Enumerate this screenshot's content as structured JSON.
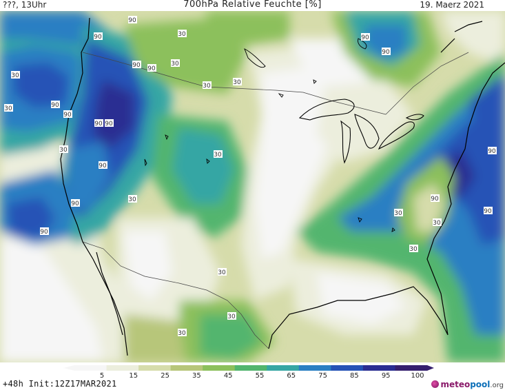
{
  "header": {
    "left": "???, 13Uhr",
    "title": "700hPa Relative Feuchte [%]",
    "date": "19. Maerz 2021"
  },
  "footer": {
    "run": "+48h  Init:12Z17MAR2021"
  },
  "brand": {
    "part1": "meteo",
    "part2": "pool",
    "part3": ".org"
  },
  "legend": {
    "ticks": [
      "5",
      "15",
      "25",
      "35",
      "45",
      "55",
      "65",
      "75",
      "85",
      "95",
      "100"
    ],
    "colors": [
      "#f6f6f6",
      "#eceedd",
      "#d6dcab",
      "#b7c67a",
      "#8cc05c",
      "#52b56e",
      "#36a6a4",
      "#2a7fc3",
      "#2552b6",
      "#2a2d92",
      "#351f6e"
    ]
  },
  "contour_labels": {
    "values": [
      "90",
      "90",
      "90",
      "90",
      "90",
      "90",
      "90",
      "90",
      "90",
      "90",
      "90",
      "90",
      "90",
      "90",
      "90",
      "90",
      "30",
      "30",
      "30",
      "30",
      "30",
      "30",
      "30",
      "30",
      "30",
      "30",
      "30",
      "30",
      "30",
      "30",
      "30"
    ]
  }
}
